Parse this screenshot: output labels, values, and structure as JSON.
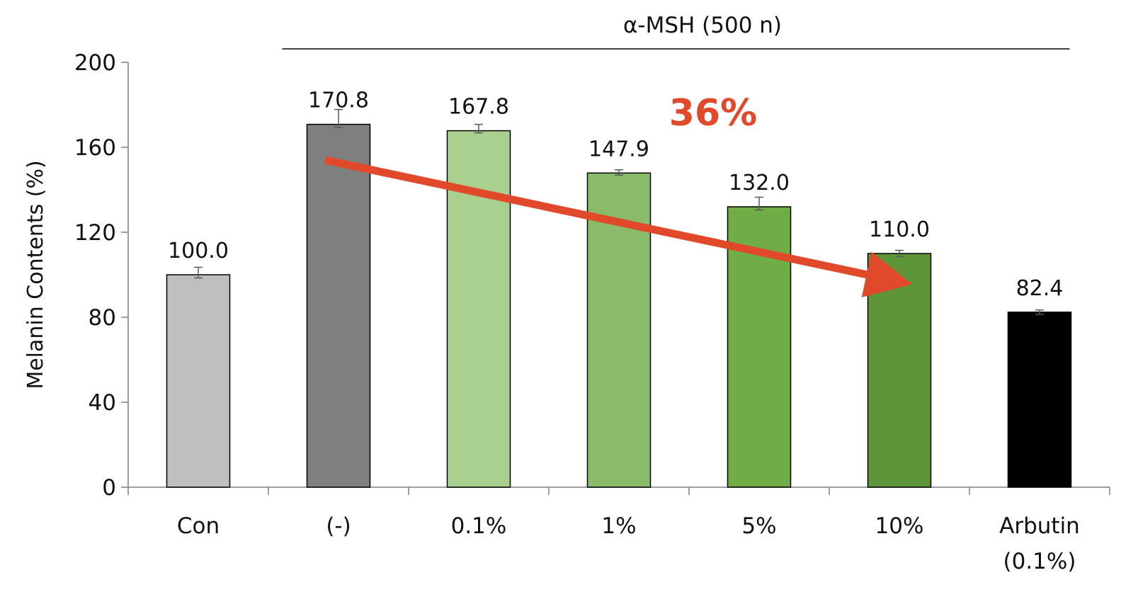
{
  "chart_data": {
    "type": "bar",
    "title": "",
    "xlabel": "",
    "ylabel": "Melanin Contents (%)",
    "ylim": [
      0,
      200
    ],
    "yticks": [
      0,
      40,
      80,
      120,
      160,
      200
    ],
    "grid": false,
    "legend": "none",
    "categories": [
      {
        "line1": "Con",
        "line2": ""
      },
      {
        "line1": "(-)",
        "line2": ""
      },
      {
        "line1": "0.1%",
        "line2": ""
      },
      {
        "line1": "1%",
        "line2": ""
      },
      {
        "line1": "5%",
        "line2": ""
      },
      {
        "line1": "10%",
        "line2": ""
      },
      {
        "line1": "Arbutin",
        "line2": "(0.1%)"
      }
    ],
    "values": [
      100.0,
      170.8,
      167.8,
      147.9,
      132.0,
      110.0,
      82.4
    ],
    "value_labels": [
      "100.0",
      "170.8",
      "167.8",
      "147.9",
      "132.0",
      "110.0",
      "82.4"
    ],
    "error_upper": [
      3.5,
      7.0,
      3.0,
      1.5,
      4.5,
      1.5,
      1.0
    ],
    "error_lower": [
      1.5,
      1.5,
      1.0,
      1.0,
      1.5,
      1.5,
      1.0
    ],
    "bar_colors": [
      "#bfbfbf",
      "#7f7f7f",
      "#a9d08e",
      "#89bb6b",
      "#70ad47",
      "#5d9538",
      "#000000"
    ],
    "bracket": {
      "label": "α-MSH (500 n)",
      "from_category": 1,
      "to_category": 6
    },
    "annotation": {
      "text": "36%",
      "color": "#e04a2a",
      "arrow": {
        "from_category": 1,
        "from_value": 154,
        "to_category": 5,
        "to_value": 96
      }
    }
  }
}
